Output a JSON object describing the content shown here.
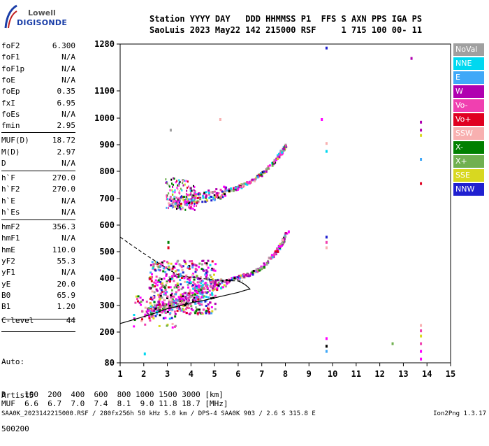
{
  "logo": {
    "line1": "Lowell",
    "line2": "DIGISONDE"
  },
  "header": {
    "row1": "Station YYYY DAY   DDD HHMMSS P1  FFS S AXN PPS IGA PS",
    "row2": "SaoLuis 2023 May22 142 215000 RSF     1 715 100 00- 11"
  },
  "params": [
    {
      "name": "foF2",
      "value": "6.300"
    },
    {
      "name": "foF1",
      "value": "N/A"
    },
    {
      "name": "foF1p",
      "value": "N/A"
    },
    {
      "name": "foE",
      "value": "N/A"
    },
    {
      "name": "foEp",
      "value": "0.35"
    },
    {
      "name": "fxI",
      "value": "6.95"
    },
    {
      "name": "foEs",
      "value": "N/A"
    },
    {
      "name": "fmin",
      "value": "2.95"
    },
    {
      "name": "MUF(D)",
      "value": "18.72"
    },
    {
      "name": "M(D)",
      "value": "2.97"
    },
    {
      "name": "D",
      "value": "N/A"
    },
    {
      "name": "h`F",
      "value": "270.0"
    },
    {
      "name": "h`F2",
      "value": "270.0"
    },
    {
      "name": "h`E",
      "value": "N/A"
    },
    {
      "name": "h`Es",
      "value": "N/A"
    },
    {
      "name": "hmF2",
      "value": "356.3"
    },
    {
      "name": "hmF1",
      "value": "N/A"
    },
    {
      "name": "hmE",
      "value": "110.0"
    },
    {
      "name": "yF2",
      "value": "55.3"
    },
    {
      "name": "yF1",
      "value": "N/A"
    },
    {
      "name": "yE",
      "value": "20.0"
    },
    {
      "name": "B0",
      "value": "65.9"
    },
    {
      "name": "B1",
      "value": "1.20"
    },
    {
      "name": "C-level",
      "value": "44"
    }
  ],
  "auto": {
    "l1": "Auto:",
    "l2": "Artist5",
    "l3": "500200"
  },
  "legend": [
    {
      "label": "NoVal",
      "color": "#a0a0a0"
    },
    {
      "label": "NNE",
      "color": "#00d8f0"
    },
    {
      "label": "E",
      "color": "#40a8f8"
    },
    {
      "label": "W",
      "color": "#b000b0"
    },
    {
      "label": "Vo-",
      "color": "#f040b0"
    },
    {
      "label": "Vo+",
      "color": "#e00020"
    },
    {
      "label": "SSW",
      "color": "#f8b0b0"
    },
    {
      "label": "X-",
      "color": "#008000"
    },
    {
      "label": "X+",
      "color": "#70b050"
    },
    {
      "label": "SSE",
      "color": "#d8d820"
    },
    {
      "label": "NNW",
      "color": "#2020d0"
    }
  ],
  "bottom": {
    "d_row": "D    100  200  400  600  800 1000 1500 3000 [km]",
    "muf_row": "MUF  6.6  6.7  7.0  7.4  8.1  9.0 11.8 18.7 [MHz]"
  },
  "footer": {
    "left": "SAA0K_2023142215000.RSF / 280fx256h 50 kHz 5.0 km / DPS-4 SAA0K 903 / 2.6 S 315.8 E",
    "right": "Ion2Png 1.3.17"
  },
  "chart_data": {
    "type": "scatter",
    "xlim": [
      1,
      15
    ],
    "ylim": [
      80,
      1280
    ],
    "x_ticks": [
      1,
      2,
      3,
      4,
      5,
      6,
      7,
      8,
      9,
      10,
      11,
      12,
      13,
      14,
      15
    ],
    "y_ticks": [
      80,
      200,
      300,
      400,
      500,
      600,
      700,
      800,
      900,
      1000,
      1100,
      1280
    ],
    "grid": false,
    "legend_position": "right",
    "traces": [
      {
        "trace": "F-layer O trace",
        "x": [
          2.0,
          2.5,
          3.0,
          3.5,
          4.0,
          4.5,
          5.0,
          5.5,
          6.0,
          6.5,
          7.0,
          7.5,
          7.8,
          8.0
        ],
        "y": [
          270,
          285,
          300,
          320,
          345,
          365,
          380,
          392,
          408,
          420,
          445,
          495,
          530,
          570
        ]
      },
      {
        "trace": "F-layer 2-hop trace",
        "x": [
          3.0,
          3.5,
          4.0,
          4.5,
          5.0,
          5.5,
          6.0,
          6.5,
          7.0,
          7.5,
          7.8,
          8.0
        ],
        "y": [
          690,
          695,
          700,
          710,
          720,
          730,
          745,
          765,
          795,
          840,
          875,
          900
        ]
      }
    ],
    "profile_curve": {
      "x": [
        1.0,
        1.5,
        2.0,
        2.5,
        3.0,
        3.5,
        4.0,
        4.5,
        5.0,
        5.5,
        6.0,
        6.3
      ],
      "y": [
        232,
        245,
        258,
        272,
        288,
        298,
        310,
        318,
        328,
        338,
        348,
        356
      ]
    }
  }
}
